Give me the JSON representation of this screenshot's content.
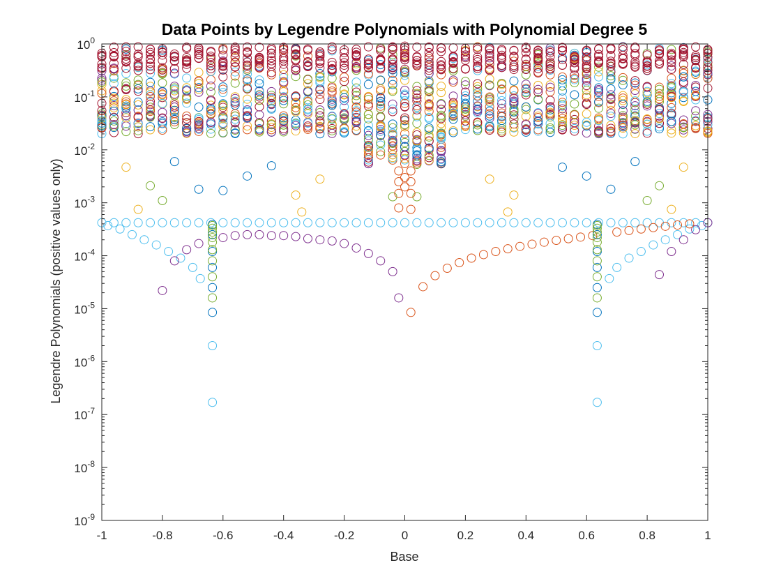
{
  "chart_data": {
    "type": "scatter",
    "title": "Data Points by Legendre Polynomials with Polynomial Degree 5",
    "xlabel": "Base",
    "ylabel": "Legendre Polynomials (positive values only)",
    "xlim": [
      -1,
      1
    ],
    "ylim": [
      1e-09,
      1
    ],
    "yscale": "log",
    "grid": false,
    "legend": "none",
    "marker": "open circle",
    "x_tick_labels": [
      "-1",
      "-0.8",
      "-0.6",
      "-0.4",
      "-0.2",
      "0",
      "0.2",
      "0.4",
      "0.6",
      "0.8",
      "1"
    ],
    "x_ticks": [
      -1,
      -0.8,
      -0.6,
      -0.4,
      -0.2,
      0,
      0.2,
      0.4,
      0.6,
      0.8,
      1
    ],
    "y_ticks": [
      {
        "value": 1,
        "base": "10",
        "exp": "0"
      },
      {
        "value": 0.1,
        "base": "10",
        "exp": "-1"
      },
      {
        "value": 0.01,
        "base": "10",
        "exp": "-2"
      },
      {
        "value": 0.001,
        "base": "10",
        "exp": "-3"
      },
      {
        "value": 0.0001,
        "base": "10",
        "exp": "-4"
      },
      {
        "value": 1e-05,
        "base": "10",
        "exp": "-5"
      },
      {
        "value": 1e-06,
        "base": "10",
        "exp": "-6"
      },
      {
        "value": 1e-07,
        "base": "10",
        "exp": "-7"
      },
      {
        "value": 1e-08,
        "base": "10",
        "exp": "-8"
      },
      {
        "value": 1e-09,
        "base": "10",
        "exp": "-9"
      }
    ],
    "colors": [
      "#0072BD",
      "#D95319",
      "#EDB120",
      "#7E2F8E",
      "#77AC30",
      "#4DBEEE",
      "#A2142F"
    ],
    "series": [
      {
        "color": "#4DBEEE",
        "x": [
          -1,
          -0.96,
          -0.92,
          -0.88,
          -0.84,
          -0.8,
          -0.76,
          -0.72,
          -0.68,
          -0.64,
          -0.6,
          -0.56,
          -0.52,
          -0.48,
          -0.44,
          -0.4,
          -0.36,
          -0.32,
          -0.28,
          -0.24,
          -0.2,
          -0.16,
          -0.12,
          -0.08,
          -0.04,
          0,
          0.04,
          0.08,
          0.12,
          0.16,
          0.2,
          0.24,
          0.28,
          0.32,
          0.36,
          0.4,
          0.44,
          0.48,
          0.52,
          0.56,
          0.6,
          0.64,
          0.68,
          0.72,
          0.76,
          0.8,
          0.84,
          0.88,
          0.92,
          0.96,
          1
        ],
        "y": [
          0.00042,
          0.00042,
          0.00042,
          0.00042,
          0.00042,
          0.00042,
          0.00042,
          0.00042,
          0.00042,
          0.00042,
          0.00042,
          0.00042,
          0.00042,
          0.00042,
          0.00042,
          0.00042,
          0.00042,
          0.00042,
          0.00042,
          0.00042,
          0.00042,
          0.00042,
          0.00042,
          0.00042,
          0.00042,
          0.00042,
          0.00042,
          0.00042,
          0.00042,
          0.00042,
          0.00042,
          0.00042,
          0.00042,
          0.00042,
          0.00042,
          0.00042,
          0.00042,
          0.00042,
          0.00042,
          0.00042,
          0.00042,
          0.00042,
          0.00042,
          0.00042,
          0.00042,
          0.00042,
          0.00042,
          0.00042,
          0.00042,
          0.00042,
          0.00042
        ]
      },
      {
        "color": "#4DBEEE",
        "x": [
          -0.98,
          -0.94,
          -0.9,
          -0.86,
          -0.82,
          -0.78,
          -0.74,
          -0.7,
          -0.675,
          0.675,
          0.7,
          0.74,
          0.78,
          0.82,
          0.86,
          0.9,
          0.94,
          0.98
        ],
        "y": [
          0.00037,
          0.00032,
          0.00025,
          0.0002,
          0.00016,
          0.00012,
          9e-05,
          6e-05,
          3.7e-05,
          3.7e-05,
          6e-05,
          9e-05,
          0.00012,
          0.00016,
          0.0002,
          0.00025,
          0.00032,
          0.00037
        ]
      },
      {
        "color": "#7E2F8E",
        "x": [
          -0.8,
          -0.76,
          -0.72,
          -0.68,
          -0.6,
          -0.56,
          -0.52,
          -0.48,
          -0.44,
          -0.4,
          -0.36,
          -0.32,
          -0.28,
          -0.24,
          -0.2,
          -0.16,
          -0.12,
          -0.08,
          -0.04,
          -0.02,
          0.84,
          0.88,
          0.92,
          0.96,
          1
        ],
        "y": [
          2.2e-05,
          8e-05,
          0.00013,
          0.00017,
          0.00022,
          0.00024,
          0.00025,
          0.00025,
          0.00024,
          0.00024,
          0.00023,
          0.00021,
          0.0002,
          0.00019,
          0.00017,
          0.00014,
          0.00011,
          8e-05,
          5e-05,
          1.6e-05,
          4.4e-05,
          0.00012,
          0.0002,
          0.00031,
          0.00042
        ]
      },
      {
        "color": "#D95319",
        "x": [
          0.02,
          0.06,
          0.1,
          0.14,
          0.18,
          0.22,
          0.26,
          0.3,
          0.34,
          0.38,
          0.42,
          0.46,
          0.5,
          0.54,
          0.58,
          0.62,
          0.7,
          0.74,
          0.78,
          0.82,
          0.86,
          0.9,
          0.94
        ],
        "y": [
          8.5e-06,
          2.6e-05,
          4.2e-05,
          5.8e-05,
          7.4e-05,
          9e-05,
          0.000105,
          0.00012,
          0.000135,
          0.00015,
          0.000165,
          0.00018,
          0.000195,
          0.00021,
          0.000225,
          0.00024,
          0.00028,
          0.0003,
          0.00032,
          0.00034,
          0.00036,
          0.00038,
          0.0004
        ]
      },
      {
        "color": "#0072BD",
        "x": [
          -0.635,
          -0.635,
          -0.635,
          -0.635,
          -0.635,
          -0.635,
          0.635,
          0.635,
          0.635,
          0.635,
          0.635,
          0.635
        ],
        "y": [
          8.5e-06,
          2.5e-05,
          6e-05,
          0.00012,
          0.00025,
          0.00039,
          8.5e-06,
          2.5e-05,
          6e-05,
          0.00012,
          0.00025,
          0.00039
        ]
      },
      {
        "color": "#77AC30",
        "x": [
          -0.635,
          -0.635,
          -0.635,
          -0.635,
          -0.635,
          -0.635,
          -0.635,
          -0.635,
          -0.635,
          0.635,
          0.635,
          0.635,
          0.635,
          0.635,
          0.635,
          0.635,
          0.635,
          0.635
        ],
        "y": [
          1.6e-05,
          4e-05,
          8e-05,
          0.00013,
          0.00018,
          0.00022,
          0.00028,
          0.00033,
          0.00037,
          1.6e-05,
          4e-05,
          8e-05,
          0.00013,
          0.00018,
          0.00022,
          0.00028,
          0.00033,
          0.00037
        ]
      },
      {
        "color": "#4DBEEE",
        "x": [
          -0.635,
          0.635,
          -0.635,
          0.635
        ],
        "y": [
          1.7e-07,
          1.7e-07,
          2e-06,
          2e-06
        ]
      },
      {
        "color": "#0072BD",
        "x": [
          -0.68,
          -0.6,
          -0.52,
          -0.44,
          0.52,
          0.6,
          0.68,
          -0.76,
          0.76
        ],
        "y": [
          0.0018,
          0.0017,
          0.0032,
          0.005,
          0.0047,
          0.0032,
          0.0018,
          0.006,
          0.006
        ]
      },
      {
        "color": "#EDB120",
        "x": [
          -0.88,
          -0.36,
          -0.34,
          0.34,
          0.36,
          0.88,
          -0.92,
          0.92,
          -0.28,
          0.28
        ],
        "y": [
          0.00075,
          0.0014,
          0.00067,
          0.00067,
          0.0014,
          0.00075,
          0.0047,
          0.0047,
          0.0028,
          0.0028
        ]
      },
      {
        "color": "#77AC30",
        "x": [
          -0.8,
          0.8,
          -0.84,
          0.84,
          -0.04,
          0.04
        ],
        "y": [
          0.0011,
          0.0011,
          0.0021,
          0.0021,
          0.0013,
          0.0013
        ]
      },
      {
        "color": "#D95319",
        "x": [
          -0.02,
          0.02,
          -0.02,
          0.02,
          -0.02,
          0.02,
          -0.02,
          0.02,
          0,
          0,
          0
        ],
        "y": [
          0.0008,
          0.00075,
          0.0015,
          0.0015,
          0.0025,
          0.0025,
          0.004,
          0.004,
          0.002,
          0.003,
          0.0055
        ]
      }
    ],
    "band_series": {
      "x_start": -1,
      "x_step": 0.04,
      "count": 51,
      "y_top": 1.0,
      "y_bottom": 0.02,
      "points_per_column": 22,
      "colors_cycle": [
        "#A2142F",
        "#EDB120",
        "#77AC30",
        "#4DBEEE",
        "#D95319",
        "#0072BD",
        "#7E2F8E"
      ]
    }
  }
}
